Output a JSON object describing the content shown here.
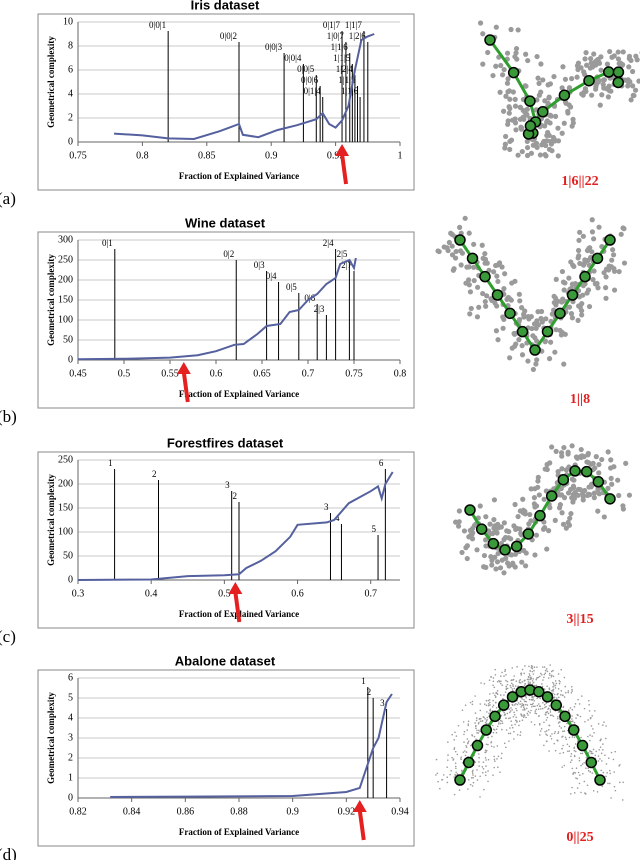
{
  "chart_data": [
    {
      "type": "line",
      "panel": "(a)",
      "title": "Iris dataset",
      "x_label": "Fraction of Explained Variance",
      "y_label": "Geometrical complexity",
      "x": [
        0.778,
        0.8,
        0.82,
        0.84,
        0.86,
        0.875,
        0.878,
        0.89,
        0.905,
        0.92,
        0.935,
        0.94,
        0.945,
        0.95,
        0.955,
        0.96,
        0.965,
        0.97,
        0.975,
        0.98
      ],
      "series": [
        {
          "name": "complexity",
          "color": "#55609e",
          "values": [
            0.7,
            0.55,
            0.3,
            0.25,
            0.9,
            1.5,
            0.6,
            0.4,
            1.0,
            1.4,
            1.9,
            2.4,
            1.5,
            1.2,
            1.8,
            3,
            6,
            8.5,
            8.8,
            9
          ]
        }
      ],
      "xlim": [
        0.75,
        1
      ],
      "ylim": [
        0,
        10
      ],
      "xticks": [
        0.75,
        0.8,
        0.85,
        0.9,
        0.95,
        1
      ],
      "yticks": [
        0,
        2,
        4,
        6,
        8,
        10
      ],
      "annotations": [
        {
          "label": "0|0|1",
          "x": 0.82
        },
        {
          "label": "0|0|2",
          "x": 0.875
        },
        {
          "label": "0|0|3",
          "x": 0.91
        },
        {
          "label": "0|0|4",
          "x": 0.925
        },
        {
          "label": "0|0|5",
          "x": 0.935
        },
        {
          "label": "0|0|6",
          "x": 0.938
        },
        {
          "label": "0|1|4",
          "x": 0.94
        },
        {
          "label": "0|1|7",
          "x": 0.955
        },
        {
          "label": "1|0|7",
          "x": 0.958
        },
        {
          "label": "1|1|6",
          "x": 0.961
        },
        {
          "label": "1|1|5",
          "x": 0.963
        },
        {
          "label": "1|2|4",
          "x": 0.965
        },
        {
          "label": "1|1|5",
          "x": 0.967
        },
        {
          "label": "1|1|6",
          "x": 0.969
        },
        {
          "label": "1|1|7",
          "x": 0.972
        },
        {
          "label": "1|2|6",
          "x": 0.975
        }
      ],
      "arrow_x": 0.955,
      "graph_label": "1|6||22"
    },
    {
      "type": "line",
      "panel": "(b)",
      "title": "Wine dataset",
      "x_label": "Fraction of Explained Variance",
      "y_label": "Geometrical complexity",
      "x": [
        0.45,
        0.5,
        0.55,
        0.58,
        0.6,
        0.62,
        0.63,
        0.645,
        0.655,
        0.67,
        0.68,
        0.69,
        0.7,
        0.71,
        0.72,
        0.73,
        0.735,
        0.745,
        0.75,
        0.752
      ],
      "series": [
        {
          "name": "complexity",
          "color": "#55609e",
          "values": [
            2,
            3,
            6,
            12,
            22,
            38,
            40,
            65,
            85,
            90,
            120,
            125,
            150,
            165,
            190,
            205,
            240,
            250,
            230,
            255
          ]
        }
      ],
      "xlim": [
        0.45,
        0.8
      ],
      "ylim": [
        0,
        300
      ],
      "xticks": [
        0.45,
        0.5,
        0.55,
        0.6,
        0.65,
        0.7,
        0.75,
        0.8
      ],
      "yticks": [
        0,
        50,
        100,
        150,
        200,
        250,
        300
      ],
      "annotations": [
        {
          "label": "0|1",
          "x": 0.49
        },
        {
          "label": "0|2",
          "x": 0.622
        },
        {
          "label": "0|3",
          "x": 0.655
        },
        {
          "label": "0|4",
          "x": 0.668
        },
        {
          "label": "0|5",
          "x": 0.69
        },
        {
          "label": "0|6",
          "x": 0.71
        },
        {
          "label": "2|3",
          "x": 0.72
        },
        {
          "label": "2|4",
          "x": 0.73
        },
        {
          "label": "2|5",
          "x": 0.745
        },
        {
          "label": "2|7",
          "x": 0.75
        }
      ],
      "arrow_x": 0.565,
      "graph_label": "1||8"
    },
    {
      "type": "line",
      "panel": "(c)",
      "title": "Forestfires dataset",
      "x_label": "Fraction of Explained Variance",
      "y_label": "Geometrical complexity",
      "x": [
        0.3,
        0.4,
        0.45,
        0.5,
        0.52,
        0.53,
        0.55,
        0.57,
        0.59,
        0.6,
        0.64,
        0.65,
        0.67,
        0.7,
        0.71,
        0.715,
        0.72,
        0.73
      ],
      "series": [
        {
          "name": "complexity",
          "color": "#55609e",
          "values": [
            0,
            1,
            8,
            10,
            12,
            25,
            40,
            60,
            90,
            115,
            120,
            125,
            160,
            185,
            195,
            170,
            200,
            225
          ]
        }
      ],
      "xlim": [
        0.3,
        0.74
      ],
      "ylim": [
        0,
        250
      ],
      "xticks": [
        0.3,
        0.4,
        0.5,
        0.6,
        0.7
      ],
      "yticks": [
        0,
        50,
        100,
        150,
        200,
        250
      ],
      "annotations": [
        {
          "label": "1",
          "x": 0.35
        },
        {
          "label": "2",
          "x": 0.41
        },
        {
          "label": "3",
          "x": 0.51
        },
        {
          "label": "2",
          "x": 0.52
        },
        {
          "label": "3",
          "x": 0.645
        },
        {
          "label": "4",
          "x": 0.66
        },
        {
          "label": "5",
          "x": 0.71
        },
        {
          "label": "6",
          "x": 0.72
        }
      ],
      "arrow_x": 0.515,
      "graph_label": "3||15"
    },
    {
      "type": "line",
      "panel": "(d)",
      "title": "Abalone dataset",
      "x_label": "Fraction of Explained Variance",
      "y_label": "Geometrical complexity",
      "x": [
        0.832,
        0.86,
        0.9,
        0.92,
        0.925,
        0.93,
        0.932,
        0.935,
        0.937
      ],
      "series": [
        {
          "name": "complexity",
          "color": "#55609e",
          "values": [
            0.05,
            0.07,
            0.1,
            0.3,
            0.5,
            2.5,
            3,
            4.8,
            5.2
          ]
        }
      ],
      "xlim": [
        0.82,
        0.94
      ],
      "ylim": [
        0,
        6
      ],
      "xticks": [
        0.82,
        0.84,
        0.86,
        0.88,
        0.9,
        0.92,
        0.94
      ],
      "yticks": [
        0,
        1,
        2,
        3,
        4,
        5,
        6
      ],
      "annotations": [
        {
          "label": "1",
          "x": 0.928
        },
        {
          "label": "2",
          "x": 0.93
        },
        {
          "label": "3",
          "x": 0.935
        }
      ],
      "arrow_x": 0.925,
      "graph_label": "0||25"
    }
  ]
}
